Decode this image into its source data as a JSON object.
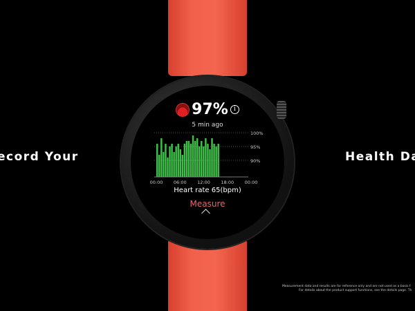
{
  "banner": {
    "left_text": "ecord Your",
    "right_text": "Health Da",
    "disclaimer_lines": [
      "Measurement data and results are for reference only and are not used as a basis f",
      "For details about the product support functions, see the details page. Th"
    ]
  },
  "colors": {
    "strap": "#f0604a",
    "bars": "#3fbf4a",
    "measure": "#e5676f",
    "spo2_icon": "#e02020"
  },
  "watch": {
    "spo2_icon": "blood-drop-gauge-icon",
    "spo2_value": "97%",
    "info_icon": "i",
    "time_ago": "5 min ago",
    "heart_rate": "Heart rate 65(bpm)",
    "measure_label": "Measure",
    "expand_icon": "chevron-up-icon"
  },
  "chart_data": {
    "type": "bar",
    "y_ticks": [
      "100%",
      "95%",
      "90%"
    ],
    "y_tick_values": [
      100,
      95,
      90
    ],
    "x_ticks": [
      "00:00",
      "06:00",
      "12:00",
      "18:00",
      "00:00"
    ],
    "ylim": [
      84,
      100
    ],
    "grid": true,
    "values": [
      96,
      92,
      98,
      93,
      96,
      91,
      95,
      96,
      93,
      95,
      96,
      94,
      92,
      96,
      97,
      97,
      96,
      99,
      97,
      98,
      95,
      97,
      95,
      98,
      96,
      94,
      98,
      96,
      95,
      96
    ]
  }
}
